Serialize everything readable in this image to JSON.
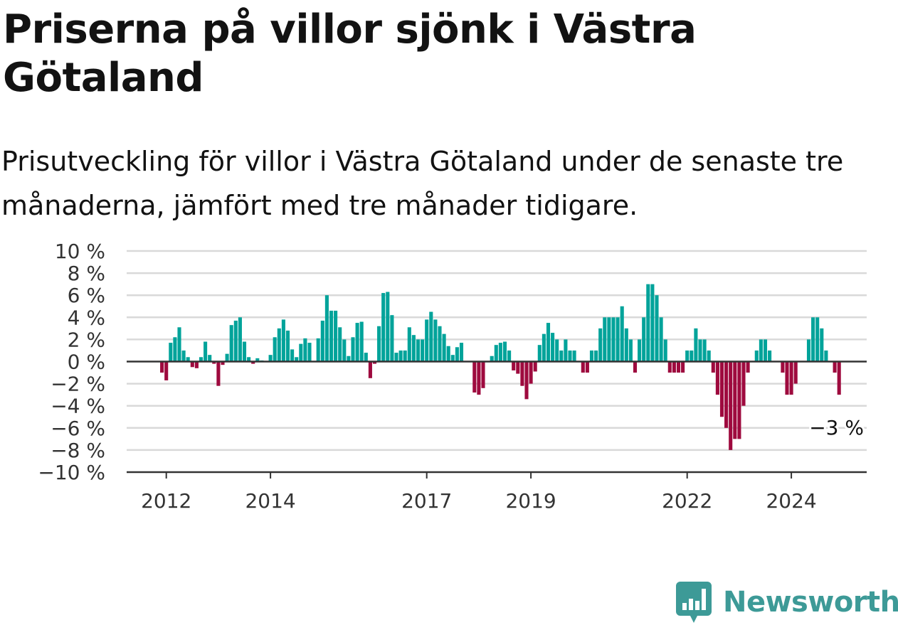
{
  "header": {
    "title": "Priserna på villor sjönk i Västra Götaland",
    "subtitle": "Prisutveckling för villor i Västra Götaland under de senaste tre månaderna, jämfört med tre månader tidigare."
  },
  "brand": {
    "name": "Newsworthy",
    "color": "#3d9a97",
    "icon": "newsworthy-logo-icon"
  },
  "colors": {
    "positive": "#00a39a",
    "negative": "#9e0a3e",
    "grid": "#d9d9d9",
    "axis": "#333333"
  },
  "chart_data": {
    "type": "bar",
    "title": "",
    "xlabel": "",
    "ylabel": "",
    "ylim": [
      -10,
      10
    ],
    "x_tick_labels": [
      "2012",
      "2014",
      "2017",
      "2019",
      "2022",
      "2024"
    ],
    "y_tick_labels": [
      "10 %",
      "8 %",
      "6 %",
      "4 %",
      "2 %",
      "0 %",
      "−2 %",
      "−4 %",
      "−6 %",
      "−8 %",
      "−10 %"
    ],
    "grid": true,
    "legend": "none",
    "last_value_label": "−3 %",
    "start": "2011-11",
    "frequency": "monthly",
    "values": [
      0,
      -1.0,
      -1.7,
      1.7,
      2.2,
      3.1,
      1.0,
      0.4,
      -0.5,
      -0.6,
      0.4,
      1.8,
      0.6,
      -0.2,
      -2.2,
      -0.3,
      0.7,
      3.3,
      3.7,
      4.0,
      1.8,
      0.4,
      -0.2,
      0.3,
      0.1,
      0,
      0.6,
      2.2,
      3.0,
      3.8,
      2.8,
      1.1,
      0.4,
      1.6,
      2.1,
      1.7,
      0,
      2.1,
      3.7,
      6.0,
      4.6,
      4.6,
      3.1,
      2.0,
      0.5,
      2.2,
      3.5,
      3.6,
      0.8,
      -1.5,
      -0.2,
      3.2,
      6.2,
      6.3,
      4.2,
      0.8,
      1.0,
      1.0,
      3.1,
      2.4,
      2.0,
      2.0,
      3.8,
      4.5,
      3.8,
      3.2,
      2.5,
      1.4,
      0.6,
      1.3,
      1.7,
      0,
      0,
      -2.8,
      -3.0,
      -2.4,
      0,
      0.5,
      1.5,
      1.7,
      1.8,
      1.0,
      -0.8,
      -1.1,
      -2.2,
      -3.4,
      -2.0,
      -0.9,
      1.5,
      2.5,
      3.5,
      2.6,
      2.0,
      1.0,
      2.0,
      1.0,
      1.0,
      0,
      -1.0,
      -1.0,
      1.0,
      1.0,
      3.0,
      4.0,
      4.0,
      4.0,
      4.0,
      5.0,
      3.0,
      2.0,
      -1.0,
      2.0,
      4.0,
      7.0,
      7.0,
      6.0,
      4.0,
      2.0,
      -1.0,
      -1.0,
      -1.0,
      -1.0,
      1.0,
      1.0,
      3.0,
      2.0,
      2.0,
      1.0,
      -1.0,
      -3.0,
      -5.0,
      -6.0,
      -8.0,
      -7.0,
      -7.0,
      -4.0,
      -1.0,
      0,
      1.0,
      2.0,
      2.0,
      1.0,
      0,
      0,
      -1.0,
      -3.0,
      -3.0,
      -2.0,
      0,
      0,
      2.0,
      4.0,
      4.0,
      3.0,
      1.0,
      0,
      -1.0,
      -3.0
    ]
  }
}
